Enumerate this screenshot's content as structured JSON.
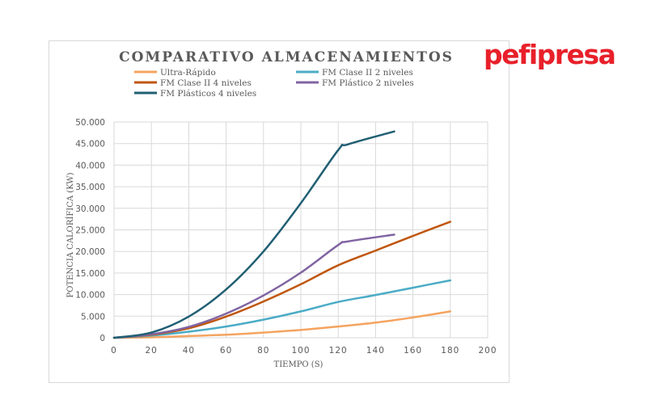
{
  "logo": {
    "text": "pefipresa",
    "color": "#e8202a"
  },
  "chart_data": {
    "type": "line",
    "title": "COMPARATIVO ALMACENAMIENTOS",
    "xlabel": "TIEMPO (S)",
    "ylabel": "POTENCIA CALORÍFICA (KW)",
    "xlim": [
      0,
      200
    ],
    "ylim": [
      0,
      50000
    ],
    "x_ticks": [
      "0",
      "20",
      "40",
      "60",
      "80",
      "100",
      "120",
      "140",
      "160",
      "180",
      "200"
    ],
    "y_ticks": [
      "0",
      "5.000",
      "10.000",
      "15.000",
      "20.000",
      "25.000",
      "30.000",
      "35.000",
      "40.000",
      "45.000",
      "50.000"
    ],
    "grid": true,
    "legend_position": "top",
    "series": [
      {
        "name": "Ultra-Rápido",
        "color": "#f4a460",
        "points": [
          [
            0,
            0
          ],
          [
            20,
            100
          ],
          [
            40,
            400
          ],
          [
            60,
            700
          ],
          [
            80,
            1200
          ],
          [
            100,
            1800
          ],
          [
            120,
            2600
          ],
          [
            140,
            3500
          ],
          [
            160,
            4700
          ],
          [
            180,
            6100
          ]
        ]
      },
      {
        "name": "FM Clase II 2 niveles",
        "color": "#4bacc6",
        "points": [
          [
            0,
            0
          ],
          [
            20,
            500
          ],
          [
            40,
            1400
          ],
          [
            60,
            2600
          ],
          [
            80,
            4200
          ],
          [
            100,
            6100
          ],
          [
            120,
            8300
          ],
          [
            140,
            9900
          ],
          [
            160,
            11600
          ],
          [
            180,
            13300
          ]
        ]
      },
      {
        "name": "FM Clase II 4 niveles",
        "color": "#c0560e",
        "points": [
          [
            0,
            0
          ],
          [
            20,
            700
          ],
          [
            40,
            2200
          ],
          [
            60,
            4900
          ],
          [
            80,
            8400
          ],
          [
            100,
            12400
          ],
          [
            120,
            16800
          ],
          [
            140,
            20200
          ],
          [
            160,
            23600
          ],
          [
            180,
            26900
          ]
        ]
      },
      {
        "name": "FM Plástico 2 niveles",
        "color": "#8064a2",
        "points": [
          [
            0,
            0
          ],
          [
            20,
            800
          ],
          [
            40,
            2500
          ],
          [
            60,
            5600
          ],
          [
            80,
            9800
          ],
          [
            100,
            15100
          ],
          [
            120,
            21500
          ],
          [
            125,
            22300
          ],
          [
            150,
            23900
          ]
        ]
      },
      {
        "name": "FM Plásticos 4 niveles",
        "color": "#215f73",
        "points": [
          [
            0,
            0
          ],
          [
            20,
            1200
          ],
          [
            40,
            4900
          ],
          [
            60,
            11200
          ],
          [
            80,
            20000
          ],
          [
            100,
            31200
          ],
          [
            120,
            43500
          ],
          [
            125,
            44800
          ],
          [
            150,
            47800
          ]
        ]
      }
    ]
  }
}
